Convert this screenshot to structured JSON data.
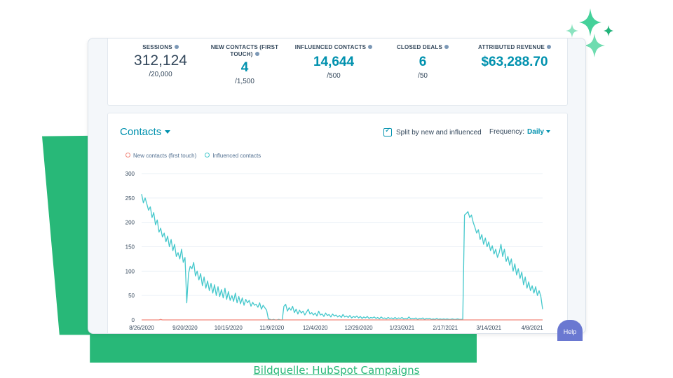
{
  "kpis": [
    {
      "label": "SESSIONS",
      "value": "312,124",
      "goal": "/20,000",
      "style": "plain"
    },
    {
      "label": "NEW CONTACTS (FIRST TOUCH)",
      "value": "4",
      "goal": "/1,500",
      "style": "teal"
    },
    {
      "label": "INFLUENCED CONTACTS",
      "value": "14,644",
      "goal": "/500",
      "style": "teal"
    },
    {
      "label": "CLOSED DEALS",
      "value": "6",
      "goal": "/50",
      "style": "teal"
    },
    {
      "label": "ATTRIBUTED REVENUE",
      "value": "$63,288.70",
      "goal": "",
      "style": "teal"
    }
  ],
  "chart_header": {
    "title": "Contacts",
    "split_label": "Split by new and influenced",
    "split_checked": true,
    "frequency_label": "Frequency:",
    "frequency_value": "Daily"
  },
  "help_label": "Help",
  "caption": "Bildquelle: HubSpot Campaigns",
  "colors": {
    "teal": "#0091ae",
    "influenced": "#45c8cc",
    "new": "#f2877a",
    "green": "#28b878"
  },
  "chart_data": {
    "type": "line",
    "legend": [
      "New contacts (first touch)",
      "Influenced contacts"
    ],
    "y_ticks": [
      0,
      50,
      100,
      150,
      200,
      250,
      300
    ],
    "ylim": [
      0,
      300
    ],
    "x_tick_labels": [
      "8/26/2020",
      "9/20/2020",
      "10/15/2020",
      "11/9/2020",
      "12/4/2020",
      "12/29/2020",
      "1/23/2021",
      "2/17/2021",
      "3/14/2021",
      "4/8/2021"
    ],
    "x_days": 232,
    "series": [
      {
        "name": "Influenced contacts",
        "points": [
          [
            0,
            258
          ],
          [
            1,
            240
          ],
          [
            2,
            250
          ],
          [
            3,
            238
          ],
          [
            4,
            225
          ],
          [
            5,
            232
          ],
          [
            6,
            210
          ],
          [
            7,
            220
          ],
          [
            8,
            195
          ],
          [
            9,
            205
          ],
          [
            10,
            180
          ],
          [
            11,
            188
          ],
          [
            12,
            170
          ],
          [
            13,
            178
          ],
          [
            14,
            160
          ],
          [
            15,
            172
          ],
          [
            16,
            150
          ],
          [
            17,
            165
          ],
          [
            18,
            142
          ],
          [
            19,
            155
          ],
          [
            20,
            130
          ],
          [
            21,
            138
          ],
          [
            22,
            125
          ],
          [
            23,
            145
          ],
          [
            24,
            118
          ],
          [
            25,
            128
          ],
          [
            26,
            35
          ],
          [
            27,
            95
          ],
          [
            28,
            110
          ],
          [
            29,
            105
          ],
          [
            30,
            118
          ],
          [
            31,
            90
          ],
          [
            32,
            100
          ],
          [
            33,
            82
          ],
          [
            34,
            95
          ],
          [
            35,
            70
          ],
          [
            36,
            88
          ],
          [
            37,
            65
          ],
          [
            38,
            80
          ],
          [
            39,
            60
          ],
          [
            40,
            75
          ],
          [
            41,
            55
          ],
          [
            42,
            72
          ],
          [
            43,
            50
          ],
          [
            44,
            68
          ],
          [
            45,
            48
          ],
          [
            46,
            62
          ],
          [
            47,
            45
          ],
          [
            48,
            65
          ],
          [
            49,
            42
          ],
          [
            50,
            58
          ],
          [
            51,
            40
          ],
          [
            52,
            50
          ],
          [
            53,
            38
          ],
          [
            54,
            55
          ],
          [
            55,
            35
          ],
          [
            56,
            48
          ],
          [
            57,
            33
          ],
          [
            58,
            45
          ],
          [
            59,
            30
          ],
          [
            60,
            42
          ],
          [
            61,
            35
          ],
          [
            62,
            40
          ],
          [
            63,
            28
          ],
          [
            64,
            36
          ],
          [
            65,
            30
          ],
          [
            66,
            32
          ],
          [
            67,
            26
          ],
          [
            68,
            35
          ],
          [
            69,
            22
          ],
          [
            70,
            30
          ],
          [
            71,
            25
          ],
          [
            72,
            20
          ],
          [
            73,
            2
          ],
          [
            74,
            1
          ],
          [
            75,
            0
          ],
          [
            76,
            1
          ],
          [
            77,
            0
          ],
          [
            78,
            0
          ],
          [
            79,
            1
          ],
          [
            80,
            0
          ],
          [
            81,
            0
          ],
          [
            82,
            28
          ],
          [
            83,
            32
          ],
          [
            84,
            18
          ],
          [
            85,
            25
          ],
          [
            86,
            20
          ],
          [
            87,
            28
          ],
          [
            88,
            15
          ],
          [
            89,
            22
          ],
          [
            90,
            12
          ],
          [
            91,
            20
          ],
          [
            92,
            14
          ],
          [
            93,
            18
          ],
          [
            94,
            10
          ],
          [
            95,
            16
          ],
          [
            96,
            22
          ],
          [
            97,
            12
          ],
          [
            98,
            15
          ],
          [
            99,
            10
          ],
          [
            100,
            14
          ],
          [
            101,
            8
          ],
          [
            102,
            18
          ],
          [
            103,
            10
          ],
          [
            104,
            12
          ],
          [
            105,
            7
          ],
          [
            106,
            14
          ],
          [
            107,
            9
          ],
          [
            108,
            11
          ],
          [
            109,
            6
          ],
          [
            110,
            12
          ],
          [
            111,
            8
          ],
          [
            112,
            10
          ],
          [
            113,
            6
          ],
          [
            114,
            9
          ],
          [
            115,
            5
          ],
          [
            116,
            11
          ],
          [
            117,
            6
          ],
          [
            118,
            8
          ],
          [
            119,
            5
          ],
          [
            120,
            9
          ],
          [
            121,
            4
          ],
          [
            122,
            7
          ],
          [
            123,
            5
          ],
          [
            124,
            8
          ],
          [
            125,
            4
          ],
          [
            126,
            7
          ],
          [
            127,
            3
          ],
          [
            128,
            6
          ],
          [
            129,
            4
          ],
          [
            130,
            7
          ],
          [
            131,
            3
          ],
          [
            132,
            5
          ],
          [
            133,
            4
          ],
          [
            134,
            6
          ],
          [
            135,
            3
          ],
          [
            136,
            5
          ],
          [
            137,
            2
          ],
          [
            138,
            6
          ],
          [
            139,
            3
          ],
          [
            140,
            4
          ],
          [
            141,
            2
          ],
          [
            142,
            5
          ],
          [
            143,
            3
          ],
          [
            144,
            4
          ],
          [
            145,
            2
          ],
          [
            146,
            5
          ],
          [
            147,
            2
          ],
          [
            148,
            4
          ],
          [
            149,
            3
          ],
          [
            150,
            5
          ],
          [
            151,
            2
          ],
          [
            152,
            3
          ],
          [
            153,
            2
          ],
          [
            154,
            6
          ],
          [
            155,
            2
          ],
          [
            156,
            3
          ],
          [
            157,
            2
          ],
          [
            158,
            4
          ],
          [
            159,
            1
          ],
          [
            160,
            3
          ],
          [
            161,
            2
          ],
          [
            162,
            4
          ],
          [
            163,
            1
          ],
          [
            164,
            3
          ],
          [
            165,
            2
          ],
          [
            166,
            3
          ],
          [
            167,
            1
          ],
          [
            168,
            2
          ],
          [
            169,
            1
          ],
          [
            170,
            3
          ],
          [
            171,
            1
          ],
          [
            172,
            2
          ],
          [
            173,
            1
          ],
          [
            174,
            2
          ],
          [
            175,
            1
          ],
          [
            176,
            2
          ],
          [
            177,
            1
          ],
          [
            178,
            1
          ],
          [
            179,
            2
          ],
          [
            180,
            1
          ],
          [
            181,
            1
          ],
          [
            182,
            2
          ],
          [
            183,
            1
          ],
          [
            184,
            1
          ],
          [
            185,
            1
          ],
          [
            186,
            215
          ],
          [
            187,
            218
          ],
          [
            188,
            222
          ],
          [
            189,
            210
          ],
          [
            190,
            215
          ],
          [
            191,
            200
          ],
          [
            192,
            190
          ],
          [
            193,
            178
          ],
          [
            194,
            185
          ],
          [
            195,
            165
          ],
          [
            196,
            175
          ],
          [
            197,
            155
          ],
          [
            198,
            168
          ],
          [
            199,
            150
          ],
          [
            200,
            160
          ],
          [
            201,
            142
          ],
          [
            202,
            152
          ],
          [
            203,
            135
          ],
          [
            204,
            145
          ],
          [
            205,
            128
          ],
          [
            206,
            138
          ],
          [
            207,
            155
          ],
          [
            208,
            130
          ],
          [
            209,
            145
          ],
          [
            210,
            120
          ],
          [
            211,
            130
          ],
          [
            212,
            112
          ],
          [
            213,
            125
          ],
          [
            214,
            100
          ],
          [
            215,
            115
          ],
          [
            216,
            92
          ],
          [
            217,
            105
          ],
          [
            218,
            85
          ],
          [
            219,
            98
          ],
          [
            220,
            72
          ],
          [
            221,
            88
          ],
          [
            222,
            65
          ],
          [
            223,
            78
          ],
          [
            224,
            60
          ],
          [
            225,
            70
          ],
          [
            226,
            55
          ],
          [
            227,
            68
          ],
          [
            228,
            50
          ],
          [
            229,
            60
          ],
          [
            230,
            48
          ],
          [
            231,
            22
          ]
        ]
      },
      {
        "name": "New contacts (first touch)",
        "points": [
          [
            0,
            0
          ],
          [
            10,
            0
          ],
          [
            11,
            1
          ],
          [
            12,
            0
          ],
          [
            60,
            0
          ],
          [
            120,
            0
          ],
          [
            186,
            0
          ],
          [
            231,
            0
          ]
        ]
      }
    ]
  }
}
